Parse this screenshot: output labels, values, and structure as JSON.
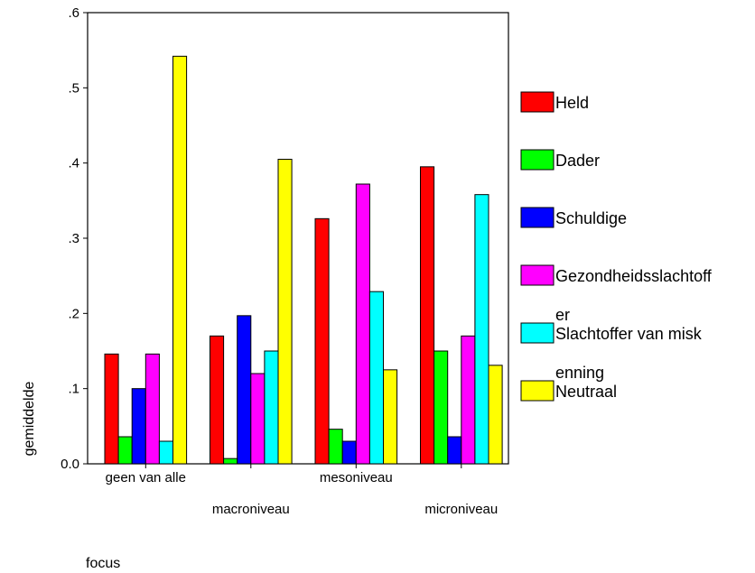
{
  "chart_data": {
    "type": "bar",
    "categories": [
      "geen van alle",
      "macroniveau",
      "mesoniveau",
      "microniveau"
    ],
    "series": [
      {
        "name": "Held",
        "values": [
          0.146,
          0.17,
          0.326,
          0.395
        ],
        "color": "#ff0000"
      },
      {
        "name": "Dader",
        "values": [
          0.036,
          0.007,
          0.046,
          0.15
        ],
        "color": "#00ff00"
      },
      {
        "name": "Schuldige",
        "values": [
          0.1,
          0.197,
          0.03,
          0.036
        ],
        "color": "#0000ff"
      },
      {
        "name": "Gezondheidsslachtoffer",
        "values": [
          0.146,
          0.12,
          0.372,
          0.17
        ],
        "color": "#ff00ff"
      },
      {
        "name": "Slachtoffer van miskenning",
        "values": [
          0.03,
          0.15,
          0.229,
          0.358
        ],
        "color": "#00ffff"
      },
      {
        "name": "Neutraal",
        "values": [
          0.542,
          0.405,
          0.125,
          0.131
        ],
        "color": "#ffff00"
      }
    ],
    "legend_lines": [
      [
        "Held"
      ],
      [
        "Dader"
      ],
      [
        "Schuldige"
      ],
      [
        "Gezondheidsslachtoff",
        "er"
      ],
      [
        "Slachtoffer van misk",
        "enning"
      ],
      [
        "Neutraal"
      ]
    ],
    "yticks": [
      {
        "value": 0.0,
        "label": "0.0"
      },
      {
        "value": 0.1,
        "label": ".1"
      },
      {
        "value": 0.2,
        "label": ".2"
      },
      {
        "value": 0.3,
        "label": ".3"
      },
      {
        "value": 0.4,
        "label": ".4"
      },
      {
        "value": 0.5,
        "label": ".5"
      },
      {
        "value": 0.6,
        "label": ".6"
      }
    ],
    "ylim": [
      0,
      0.6
    ],
    "xlabel": "focus",
    "ylabel": "gemiddelde",
    "title": "",
    "grid": false,
    "legend_position": "right"
  }
}
